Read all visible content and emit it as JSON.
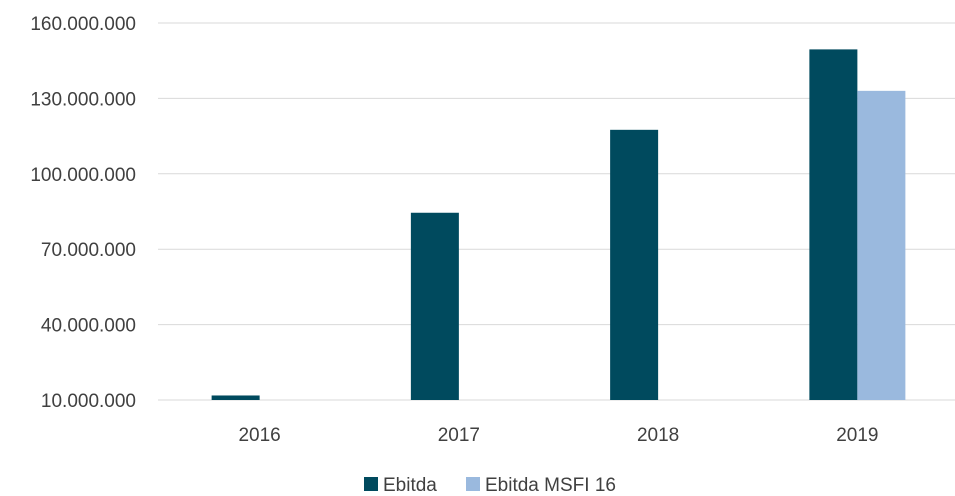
{
  "chart_data": {
    "type": "bar",
    "categories": [
      "2016",
      "2017",
      "2018",
      "2019"
    ],
    "series": [
      {
        "name": "Ebitda",
        "color": "#004a5e",
        "values": [
          11800000,
          84500000,
          117500000,
          149500000
        ]
      },
      {
        "name": "Ebitda MSFI 16",
        "color": "#9ab9de",
        "values": [
          null,
          null,
          null,
          133000000
        ]
      }
    ],
    "yticks": [
      "10.000.000",
      "40.000.000",
      "70.000.000",
      "100.000.000",
      "130.000.000",
      "160.000.000"
    ],
    "ytick_values": [
      10000000,
      40000000,
      70000000,
      100000000,
      130000000,
      160000000
    ],
    "ylim": [
      10000000,
      160000000
    ],
    "grid": true,
    "legend": "bottom-center",
    "gridline_color": "#d9d9d9"
  }
}
